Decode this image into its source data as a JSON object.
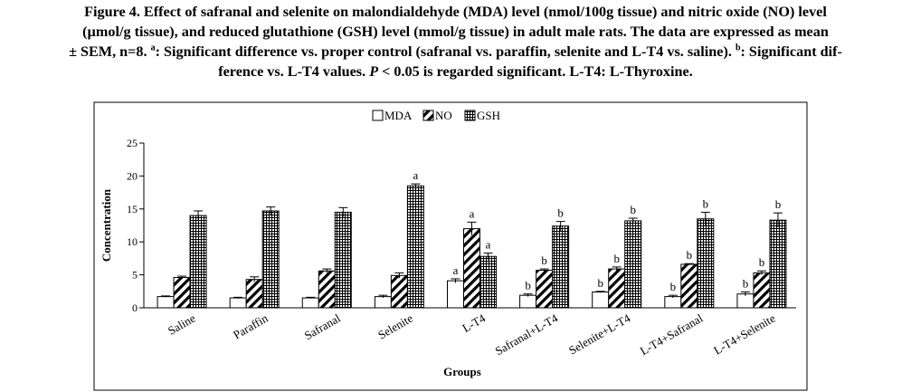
{
  "caption": {
    "line1": "Figure 4. Effect of safranal and selenite on malondialdehyde (MDA) level (nmol/100g tissue) and nitric oxide (NO) level",
    "line2": "(µmol/g tissue), and reduced glutathione (GSH) level (mmol/g tissue) in adult male rats. The data are expressed as mean",
    "line3_a": "± SEM, n=8. ",
    "sup_a": "a",
    "line3_b": ": Significant difference vs. proper control (safranal vs. paraffin, selenite and L-T4 vs. saline). ",
    "sup_b": "b",
    "line3_c": ": Significant dif-",
    "line4_a": "ference vs. L-T4 values. ",
    "line4_p": "P",
    "line4_b": " < 0.05 is regarded significant. L-T4: L-Thyroxine."
  },
  "chart_data": {
    "type": "bar",
    "title": "",
    "xlabel": "Groups",
    "ylabel": "Concentration",
    "ylim": [
      0,
      25
    ],
    "yticks": [
      "0",
      "5",
      "10",
      "15",
      "20",
      "25"
    ],
    "grid": false,
    "legend_placement": "top-center",
    "categories": [
      "Saline",
      "Paraffin",
      "Safranal",
      "Selenite",
      "L-T4",
      "Safranal+L-T4",
      "Selenite+L-T4",
      "L-T4+Safranal",
      "L-T4+Selenite"
    ],
    "series": [
      {
        "name": "MDA",
        "pattern": "white",
        "values": [
          1.7,
          1.5,
          1.5,
          1.7,
          4.1,
          1.9,
          2.4,
          1.7,
          2.1
        ],
        "errors": [
          0.1,
          0.1,
          0.1,
          0.2,
          0.3,
          0.2,
          0.1,
          0.2,
          0.3
        ],
        "annotations": [
          "",
          "",
          "",
          "",
          "a",
          "b",
          "b",
          "b",
          "b"
        ]
      },
      {
        "name": "NO",
        "pattern": "diagonal",
        "values": [
          4.6,
          4.3,
          5.6,
          4.9,
          12.0,
          5.7,
          5.9,
          6.6,
          5.3
        ],
        "errors": [
          0.2,
          0.4,
          0.3,
          0.4,
          1.0,
          0.2,
          0.3,
          0.1,
          0.3
        ],
        "annotations": [
          "",
          "",
          "",
          "",
          "a",
          "b",
          "b",
          "b",
          "b"
        ]
      },
      {
        "name": "GSH",
        "pattern": "grid",
        "values": [
          14.0,
          14.7,
          14.5,
          18.5,
          7.8,
          12.4,
          13.2,
          13.5,
          13.3
        ],
        "errors": [
          0.7,
          0.6,
          0.7,
          0.3,
          0.5,
          0.7,
          0.4,
          1.0,
          1.1
        ],
        "annotations": [
          "",
          "",
          "",
          "a",
          "a",
          "b",
          "b",
          "b",
          "b"
        ]
      }
    ]
  },
  "colors": {
    "border": "#000000",
    "bar_fill": "#ffffff",
    "pattern": "#000000"
  }
}
